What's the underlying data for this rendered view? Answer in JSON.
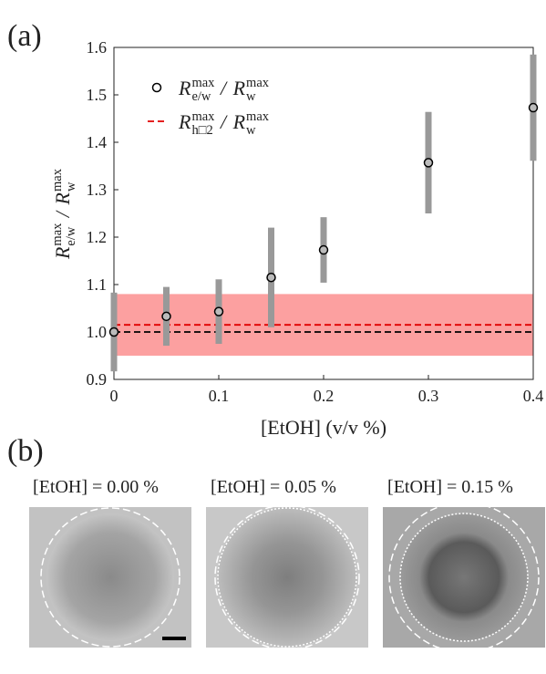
{
  "chart_data": {
    "type": "scatter",
    "panel_label": "(a)",
    "x_label": "[EtOH] (v/v %)",
    "y_label_parts": [
      "R",
      "max",
      "e/w",
      " / ",
      "R",
      "max",
      "w"
    ],
    "xlim": [
      0,
      0.4
    ],
    "xticks": [
      0,
      0.1,
      0.2,
      0.3,
      0.4
    ],
    "ylim": [
      0.9,
      1.6
    ],
    "yticks": [
      0.9,
      {
        "value": 1,
        "label": "1.0"
      },
      1.1,
      1.2,
      1.3,
      1.4,
      1.5,
      1.6
    ],
    "series": [
      {
        "name_parts": [
          "R",
          "max",
          "e/w",
          " / ",
          "R",
          "max",
          "w"
        ],
        "color": "#000000",
        "error_color": "#999999",
        "x": [
          0,
          0.05,
          0.1,
          0.15,
          0.2,
          0.3,
          0.4
        ],
        "values": [
          1.0,
          1.033,
          1.043,
          1.115,
          1.173,
          1.357,
          1.473
        ],
        "errors": [
          0.083,
          0.062,
          0.068,
          0.105,
          0.069,
          0.107,
          0.112
        ]
      }
    ],
    "hline": {
      "name_parts": [
        "R",
        "max",
        "h□2",
        " / ",
        "R",
        "max",
        "w"
      ],
      "value": 1.015,
      "color": "#e00000"
    },
    "reference_line": {
      "value": 1,
      "color": "#000000"
    },
    "band": {
      "range": [
        0.95,
        1.08
      ],
      "color": "#fca0a0"
    }
  },
  "panel_b": {
    "label": "(b)",
    "images": [
      {
        "caption": "[EtOH] = 0.00 %"
      },
      {
        "caption": "[EtOH] = 0.05 %"
      },
      {
        "caption": "[EtOH] = 0.15 %"
      }
    ]
  }
}
